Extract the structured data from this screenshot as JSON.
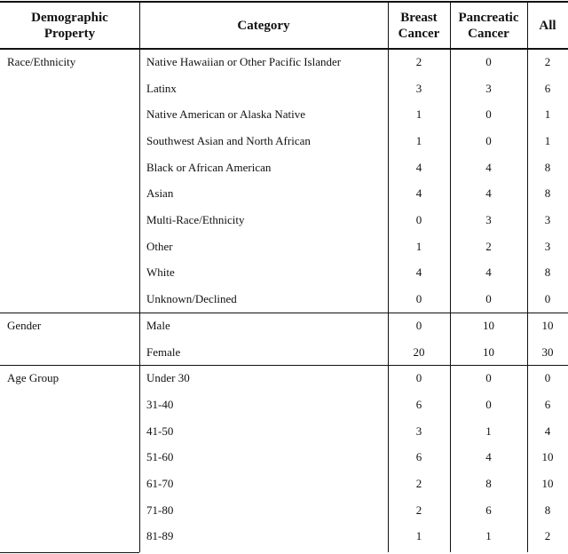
{
  "table": {
    "header": [
      "Demographic Property",
      "Category",
      "Breast Cancer",
      "Pancreatic Cancer",
      "All"
    ],
    "groups": [
      {
        "label": "Race/Ethnicity",
        "rows": [
          [
            "Native Hawaiian or Other Pacific Islander",
            2,
            0,
            2
          ],
          [
            "Latinx",
            3,
            3,
            6
          ],
          [
            "Native American or Alaska Native",
            1,
            0,
            1
          ],
          [
            "Southwest Asian and North African",
            1,
            0,
            1
          ],
          [
            "Black or African American",
            4,
            4,
            8
          ],
          [
            "Asian",
            4,
            4,
            8
          ],
          [
            "Multi-Race/Ethnicity",
            0,
            3,
            3
          ],
          [
            "Other",
            1,
            2,
            3
          ],
          [
            "White",
            4,
            4,
            8
          ],
          [
            "Unknown/Declined",
            0,
            0,
            0
          ]
        ]
      },
      {
        "label": "Gender",
        "rows": [
          [
            "Male",
            0,
            10,
            10
          ],
          [
            "Female",
            20,
            10,
            30
          ]
        ]
      },
      {
        "label": "Age Group",
        "rows": [
          [
            "Under 30",
            0,
            0,
            0
          ],
          [
            "31-40",
            6,
            0,
            6
          ],
          [
            "41-50",
            3,
            1,
            4
          ],
          [
            "51-60",
            6,
            4,
            10
          ],
          [
            "61-70",
            2,
            8,
            10
          ],
          [
            "71-80",
            2,
            6,
            8
          ],
          [
            "81-89",
            1,
            1,
            2
          ]
        ]
      }
    ]
  }
}
